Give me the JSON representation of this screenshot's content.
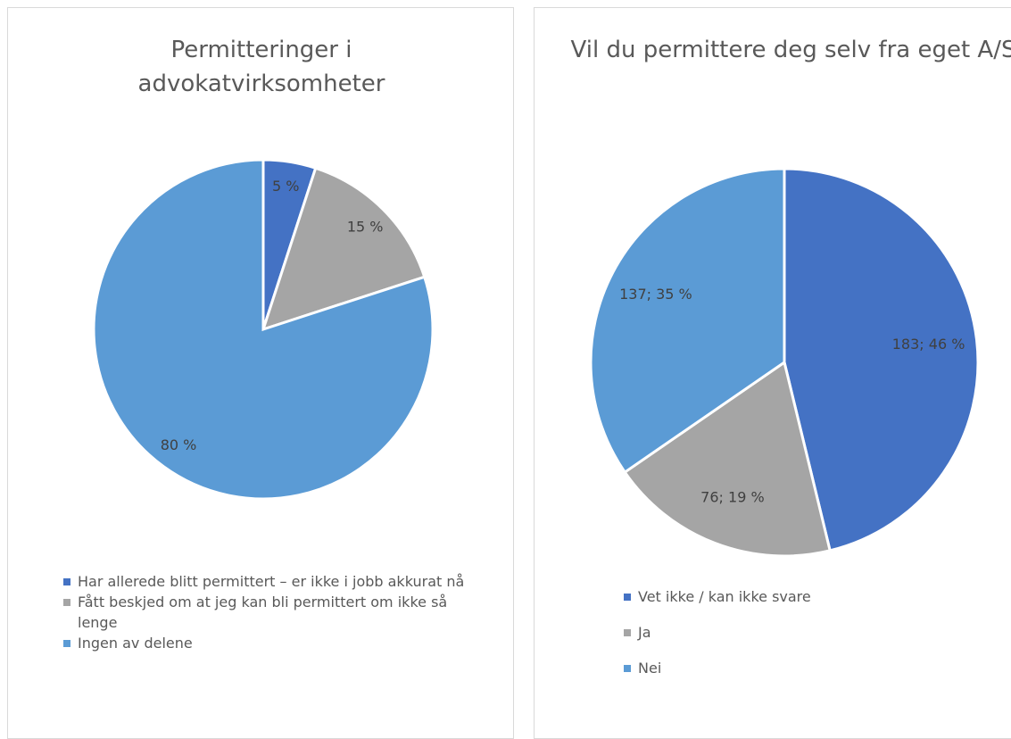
{
  "chart_data": [
    {
      "type": "pie",
      "title": "Permitteringer i advokatvirksomheter",
      "categories": [
        "Har allerede blitt permittert – er ikke i jobb akkurat nå",
        "Fått beskjed om at jeg kan bli permittert om ikke så lenge",
        "Ingen av delene"
      ],
      "values": [
        5,
        15,
        80
      ],
      "value_labels": [
        "5 %",
        "15 %",
        "80 %"
      ],
      "colors": [
        "#4472c4",
        "#a5a5a5",
        "#5b9bd5"
      ],
      "legend": "bottom"
    },
    {
      "type": "pie",
      "title": "Vil du permittere deg selv fra eget A/S",
      "categories": [
        "Vet ikke / kan ikke svare",
        "Ja",
        "Nei"
      ],
      "values": [
        183,
        76,
        137
      ],
      "value_labels": [
        "183; 46 %",
        "76; 19 %",
        "137; 35 %"
      ],
      "colors": [
        "#4472c4",
        "#a5a5a5",
        "#5b9bd5"
      ],
      "legend": "bottom"
    }
  ]
}
